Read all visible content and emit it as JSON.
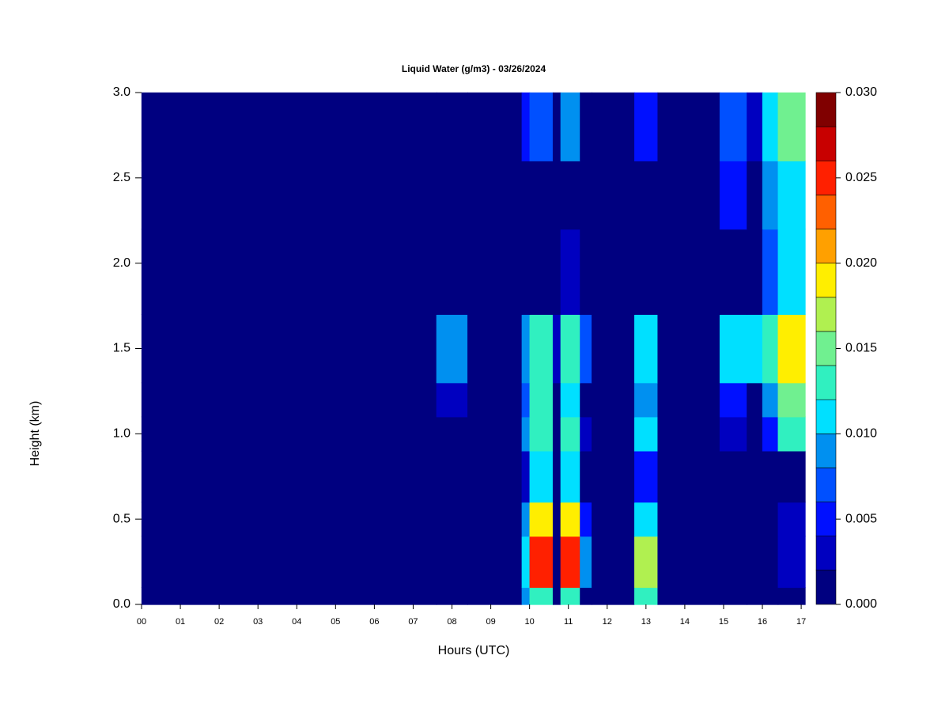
{
  "chart_data": {
    "type": "heatmap",
    "title": "Liquid Water (g/m3) - 03/26/2024",
    "xlabel": "Hours (UTC)",
    "ylabel": "Height (km)",
    "x_edges": [
      0,
      7.6,
      8.4,
      9.8,
      10.0,
      10.6,
      10.8,
      11.3,
      11.6,
      12.7,
      13.3,
      14.9,
      15.6,
      16.0,
      16.4,
      17.1
    ],
    "y_edges": [
      0,
      0.1,
      0.4,
      0.6,
      0.9,
      1.1,
      1.3,
      1.7,
      2.2,
      2.6,
      3.0
    ],
    "z": [
      [
        0,
        0,
        0,
        0.008,
        0.012,
        0,
        0.012,
        0,
        0,
        0.012,
        0,
        0,
        0,
        0,
        0.001
      ],
      [
        0,
        0,
        0,
        0.01,
        0.024,
        0,
        0.025,
        0.008,
        0,
        0.016,
        0,
        0,
        0,
        0,
        0.002
      ],
      [
        0,
        0,
        0,
        0.009,
        0.018,
        0,
        0.018,
        0.005,
        0,
        0.011,
        0,
        0,
        0,
        0,
        0.002
      ],
      [
        0,
        0,
        0,
        0.002,
        0.011,
        0,
        0.01,
        0,
        0,
        0.004,
        0,
        0,
        0,
        0,
        0.001
      ],
      [
        0,
        0,
        0,
        0.008,
        0.012,
        0,
        0.013,
        0.003,
        0,
        0.011,
        0,
        0.003,
        0,
        0.004,
        0.013
      ],
      [
        0,
        0.002,
        0,
        0.007,
        0.012,
        0,
        0.011,
        0,
        0,
        0.008,
        0,
        0.004,
        0,
        0.009,
        0.015
      ],
      [
        0,
        0.009,
        0,
        0.008,
        0.013,
        0.003,
        0.012,
        0.006,
        0,
        0.011,
        0,
        0.011,
        0.011,
        0.012,
        0.019
      ],
      [
        0,
        0,
        0,
        0,
        0,
        0,
        0.003,
        0,
        0,
        0,
        0,
        0,
        0,
        0.006,
        0.01
      ],
      [
        0,
        0,
        0,
        0,
        0,
        0,
        0,
        0,
        0,
        0,
        0,
        0.004,
        0,
        0.009,
        0.011
      ],
      [
        0,
        0,
        0,
        0.004,
        0.007,
        0,
        0.008,
        0,
        0,
        0.004,
        0,
        0.006,
        0.003,
        0.01,
        0.014
      ]
    ],
    "levels": [
      0,
      0.002,
      0.004,
      0.006,
      0.008,
      0.01,
      0.012,
      0.014,
      0.016,
      0.018,
      0.02,
      0.022,
      0.024,
      0.026,
      0.028,
      0.03
    ],
    "colors": [
      "#000080",
      "#0000C0",
      "#0010FF",
      "#0050FF",
      "#0090F0",
      "#00E0FF",
      "#30F0C0",
      "#70F090",
      "#B0F050",
      "#FFEE00",
      "#FFA000",
      "#FF6000",
      "#FF2000",
      "#C80000",
      "#800000"
    ],
    "xlim": [
      0,
      17.1
    ],
    "ylim": [
      0,
      3.0
    ],
    "xticks": [
      {
        "value": 0,
        "label": "00"
      },
      {
        "value": 1,
        "label": "01"
      },
      {
        "value": 2,
        "label": "02"
      },
      {
        "value": 3,
        "label": "03"
      },
      {
        "value": 4,
        "label": "04"
      },
      {
        "value": 5,
        "label": "05"
      },
      {
        "value": 6,
        "label": "06"
      },
      {
        "value": 7,
        "label": "07"
      },
      {
        "value": 8,
        "label": "08"
      },
      {
        "value": 9,
        "label": "09"
      },
      10,
      11,
      12,
      13,
      14,
      15,
      16,
      17
    ],
    "yticks": [
      {
        "value": 0,
        "label": "0.0"
      },
      0.5,
      {
        "value": 1,
        "label": "1.0"
      },
      1.5,
      {
        "value": 2,
        "label": "2.0"
      },
      2.5,
      {
        "value": 3,
        "label": "3.0"
      }
    ],
    "colorbar_lim": [
      0,
      0.03
    ],
    "colorbar_ticks": [
      {
        "value": 0,
        "label": "0.000"
      },
      {
        "value": 0.005,
        "label": "0.005"
      },
      {
        "value": 0.01,
        "label": "0.010"
      },
      {
        "value": 0.015,
        "label": "0.015"
      },
      {
        "value": 0.02,
        "label": "0.020"
      },
      {
        "value": 0.025,
        "label": "0.025"
      },
      {
        "value": 0.03,
        "label": "0.030"
      }
    ]
  }
}
